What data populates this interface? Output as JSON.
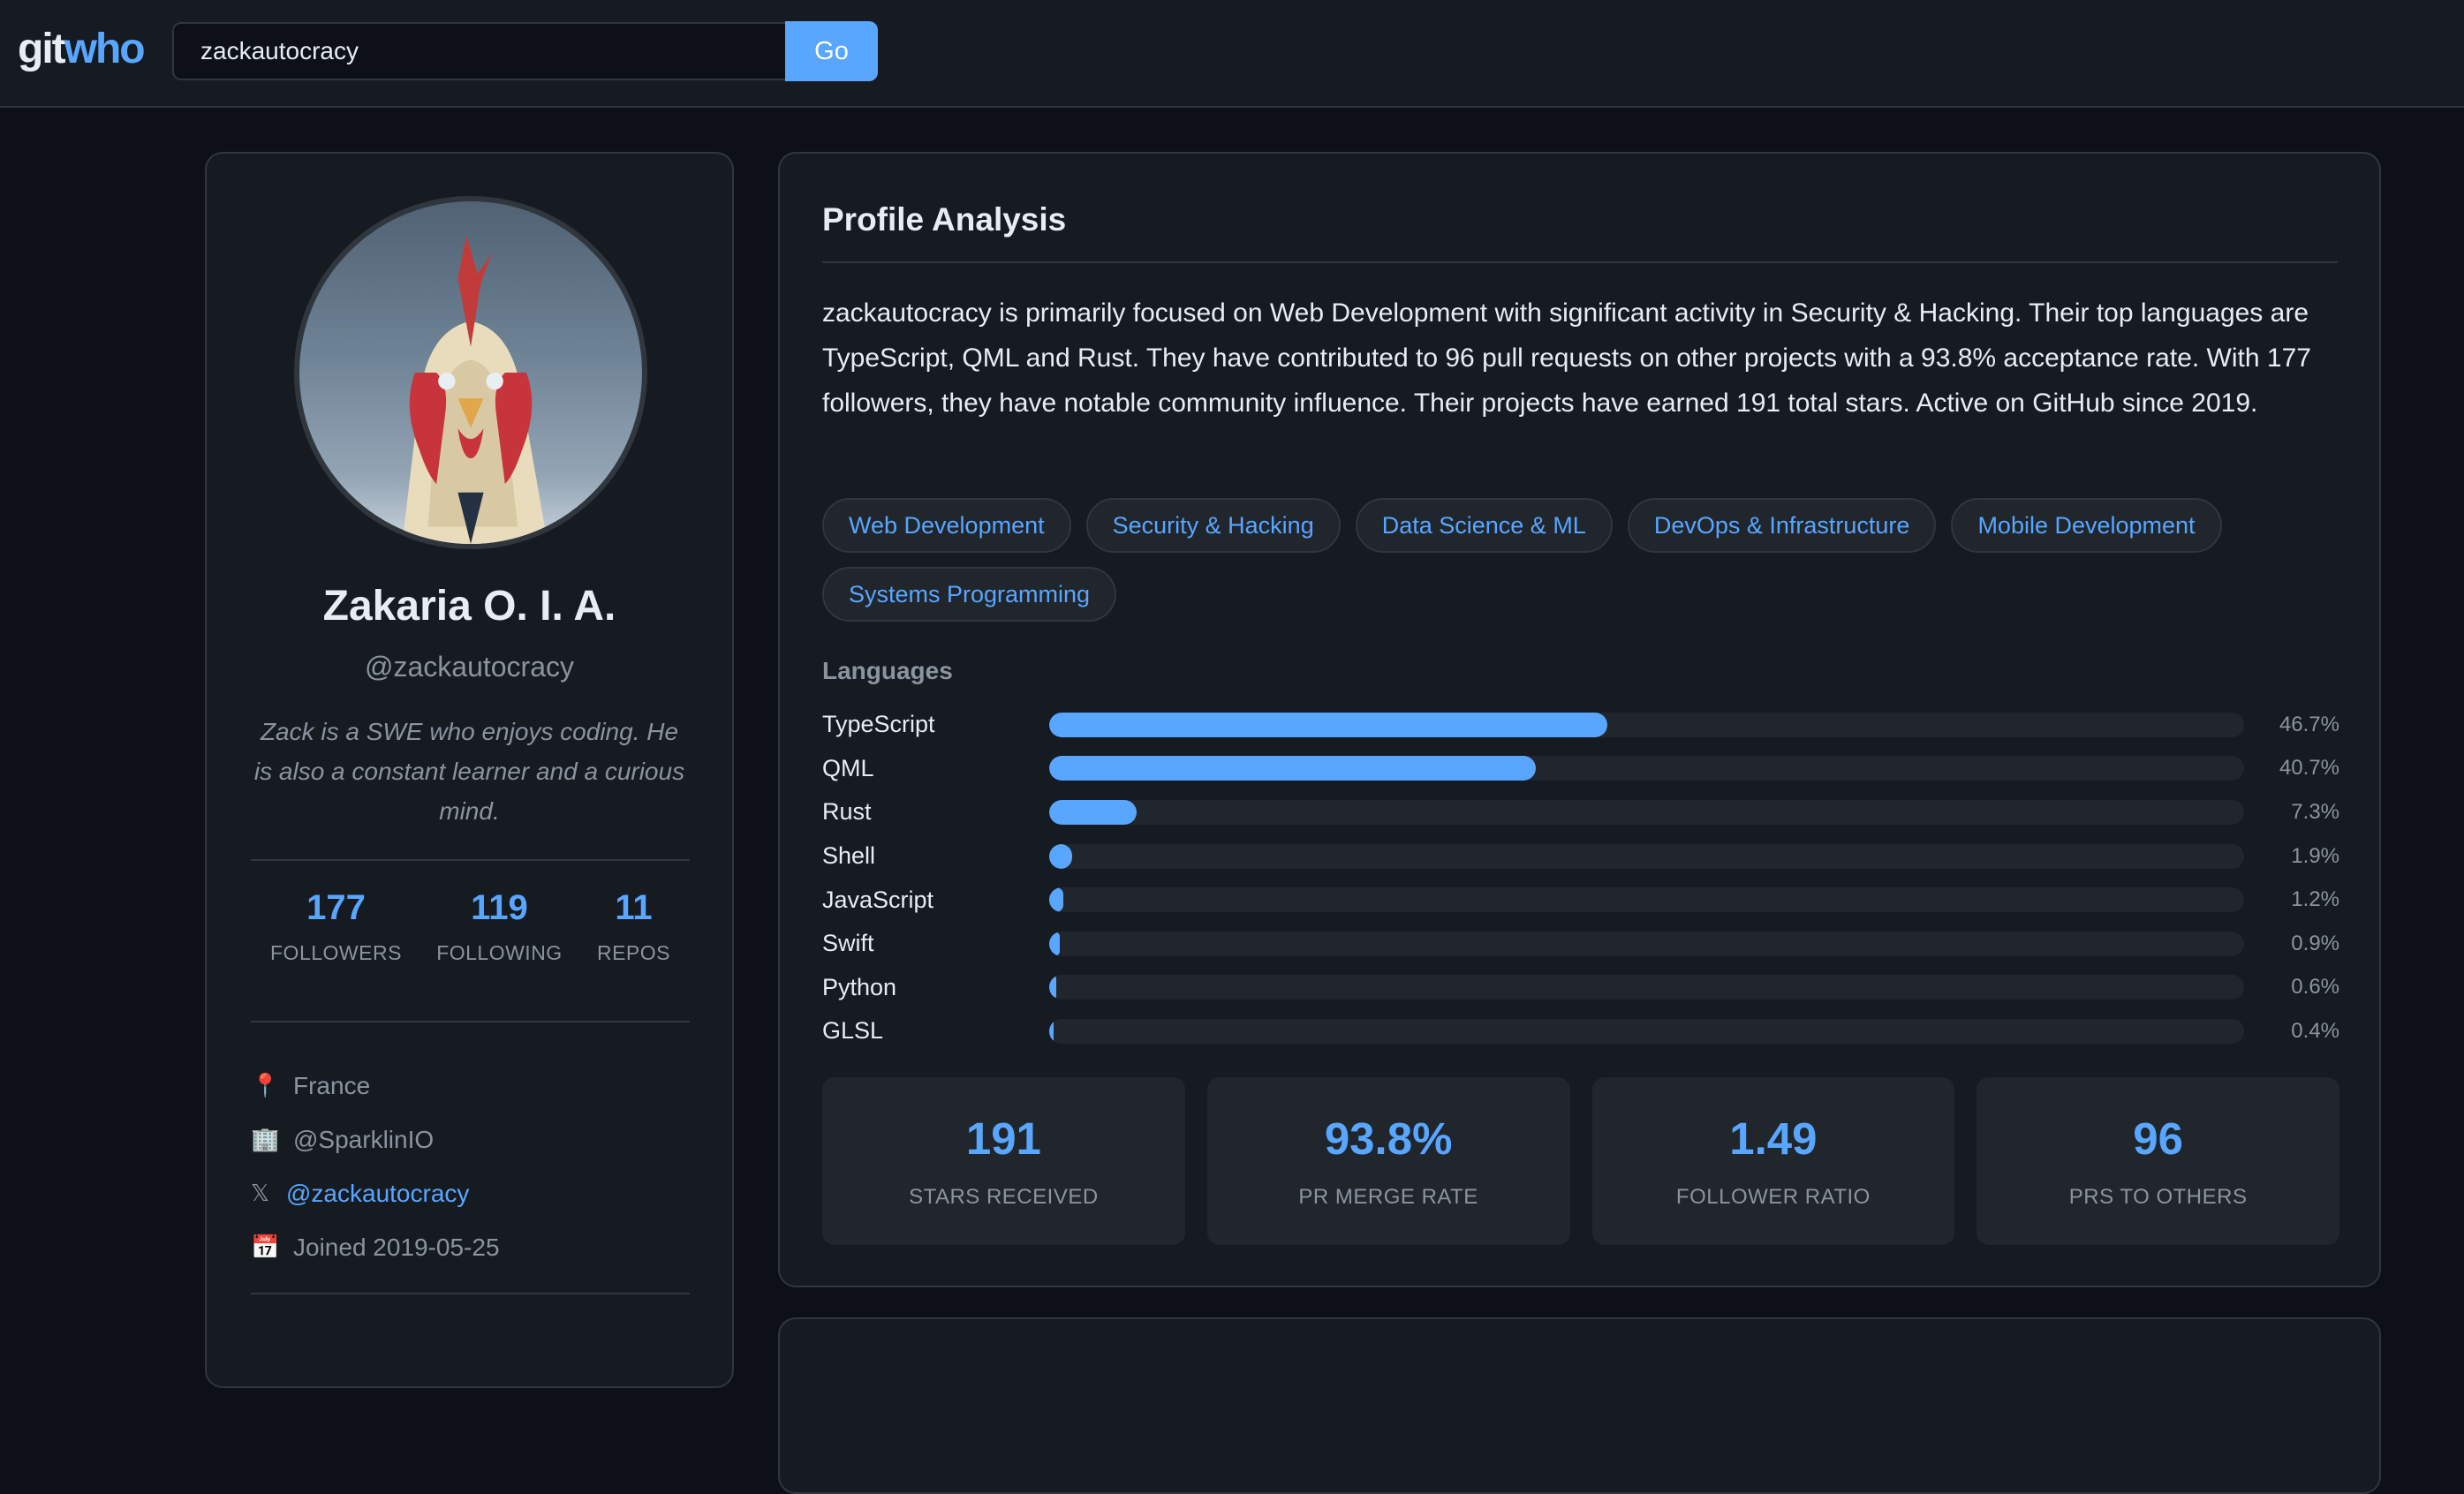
{
  "header": {
    "logo_part1": "git",
    "logo_part2": "who",
    "search_value": "zackautocracy",
    "go_label": "Go"
  },
  "profile": {
    "name": "Zakaria O. I. A.",
    "handle": "@zackautocracy",
    "bio": "Zack is a SWE who enjoys coding. He is also a constant learner and a curious mind.",
    "stats": [
      {
        "value": "177",
        "label": "FOLLOWERS"
      },
      {
        "value": "119",
        "label": "FOLLOWING"
      },
      {
        "value": "11",
        "label": "REPOS"
      }
    ],
    "meta": {
      "location_icon": "📍",
      "location": "France",
      "company_icon": "🏢",
      "company": "@SparklinIO",
      "twitter_icon": "𝕏",
      "twitter": "@zackautocracy",
      "joined_icon": "📅",
      "joined": "Joined 2019-05-25"
    }
  },
  "analysis": {
    "title": "Profile Analysis",
    "summary": "zackautocracy is primarily focused on Web Development with significant activity in Security & Hacking. Their top languages are TypeScript, QML and Rust. They have contributed to 96 pull requests on other projects with a 93.8% acceptance rate. With 177 followers, they have notable community influence. Their projects have earned 191 total stars. Active on GitHub since 2019.",
    "tags": [
      "Web Development",
      "Security & Hacking",
      "Data Science & ML",
      "DevOps & Infrastructure",
      "Mobile Development",
      "Systems Programming"
    ],
    "languages_title": "Languages",
    "languages": [
      {
        "name": "TypeScript",
        "percent": 46.7,
        "label": "46.7%"
      },
      {
        "name": "QML",
        "percent": 40.7,
        "label": "40.7%"
      },
      {
        "name": "Rust",
        "percent": 7.3,
        "label": "7.3%"
      },
      {
        "name": "Shell",
        "percent": 1.9,
        "label": "1.9%"
      },
      {
        "name": "JavaScript",
        "percent": 1.2,
        "label": "1.2%"
      },
      {
        "name": "Swift",
        "percent": 0.9,
        "label": "0.9%"
      },
      {
        "name": "Python",
        "percent": 0.6,
        "label": "0.6%"
      },
      {
        "name": "GLSL",
        "percent": 0.4,
        "label": "0.4%"
      }
    ],
    "metrics": [
      {
        "value": "191",
        "label": "STARS RECEIVED"
      },
      {
        "value": "93.8%",
        "label": "PR MERGE RATE"
      },
      {
        "value": "1.49",
        "label": "FOLLOWER RATIO"
      },
      {
        "value": "96",
        "label": "PRS TO OTHERS"
      }
    ]
  },
  "colors": {
    "accent": "#58a6ff",
    "background": "#0d1117",
    "card": "#161b22",
    "border": "#30363d",
    "muted_text": "#8b949e"
  }
}
